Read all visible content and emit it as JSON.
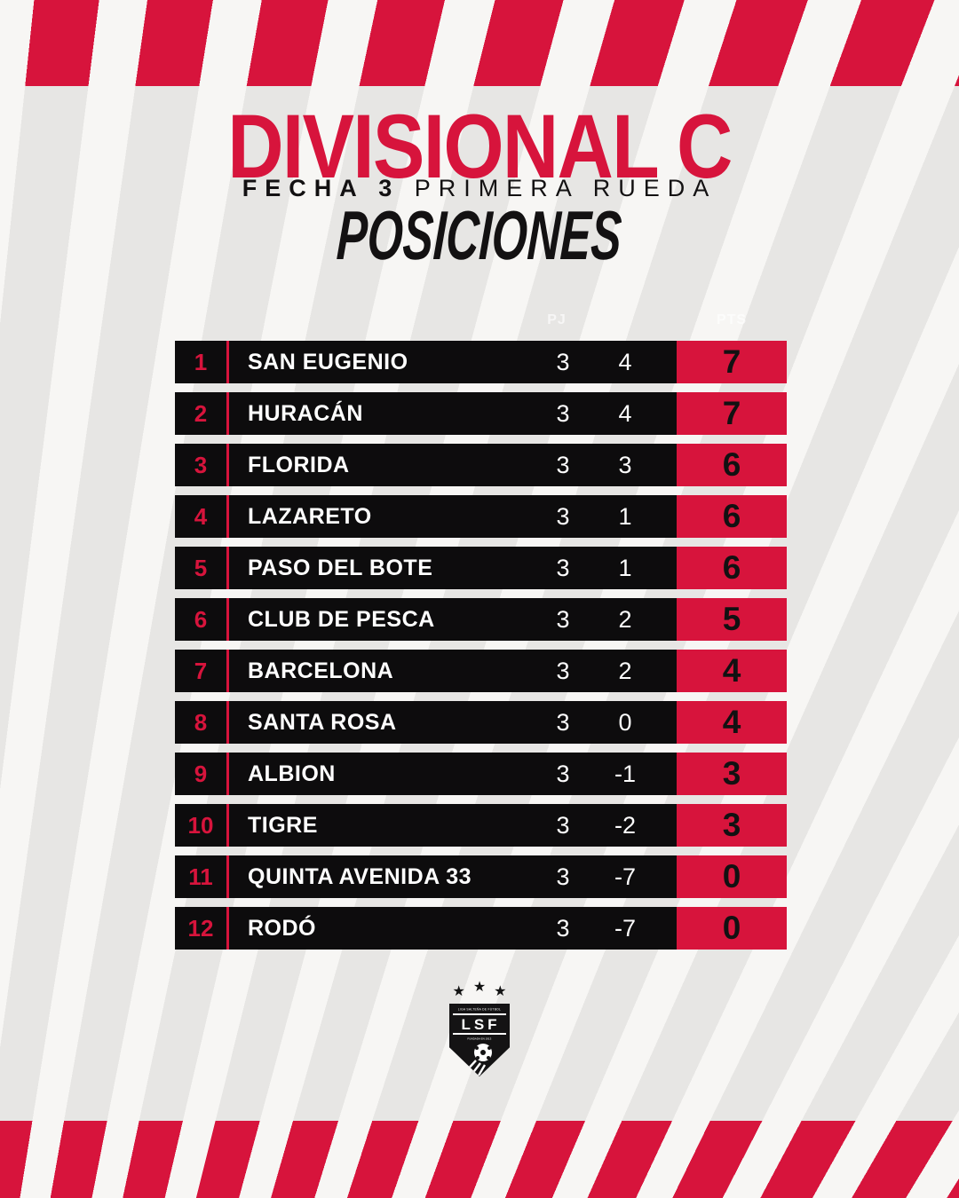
{
  "header": {
    "title": "DIVISIONAL C",
    "fecha": "FECHA 3",
    "rueda": "PRIMERA RUEDA",
    "section": "POSICIONES"
  },
  "table": {
    "col_headers": {
      "pj": "PJ",
      "pts": "PTS"
    },
    "rows": [
      {
        "pos": "1",
        "team": "SAN EUGENIO",
        "pj": "3",
        "dif": "4",
        "pts": "7"
      },
      {
        "pos": "2",
        "team": "HURACÁN",
        "pj": "3",
        "dif": "4",
        "pts": "7"
      },
      {
        "pos": "3",
        "team": "FLORIDA",
        "pj": "3",
        "dif": "3",
        "pts": "6"
      },
      {
        "pos": "4",
        "team": "LAZARETO",
        "pj": "3",
        "dif": "1",
        "pts": "6"
      },
      {
        "pos": "5",
        "team": "PASO DEL BOTE",
        "pj": "3",
        "dif": "1",
        "pts": "6"
      },
      {
        "pos": "6",
        "team": "CLUB DE PESCA",
        "pj": "3",
        "dif": "2",
        "pts": "5"
      },
      {
        "pos": "7",
        "team": "BARCELONA",
        "pj": "3",
        "dif": "2",
        "pts": "4"
      },
      {
        "pos": "8",
        "team": "SANTA ROSA",
        "pj": "3",
        "dif": "0",
        "pts": "4"
      },
      {
        "pos": "9",
        "team": "ALBION",
        "pj": "3",
        "dif": "-1",
        "pts": "3"
      },
      {
        "pos": "10",
        "team": "TIGRE",
        "pj": "3",
        "dif": "-2",
        "pts": "3"
      },
      {
        "pos": "11",
        "team": "QUINTA AVENIDA 33",
        "pj": "3",
        "dif": "-7",
        "pts": "0"
      },
      {
        "pos": "12",
        "team": "RODÓ",
        "pj": "3",
        "dif": "-7",
        "pts": "0"
      }
    ]
  },
  "logo": {
    "star": "★",
    "top_text": "LIGA SALTEÑA DE FÚTBOL",
    "initials": "LSF",
    "bottom_text": "FUNDADA EN 1913"
  },
  "colors": {
    "red": "#d7143c",
    "row_black": "#0d0c0d",
    "stripe_gray": "#e7e6e4",
    "stripe_white": "#f7f6f4"
  }
}
